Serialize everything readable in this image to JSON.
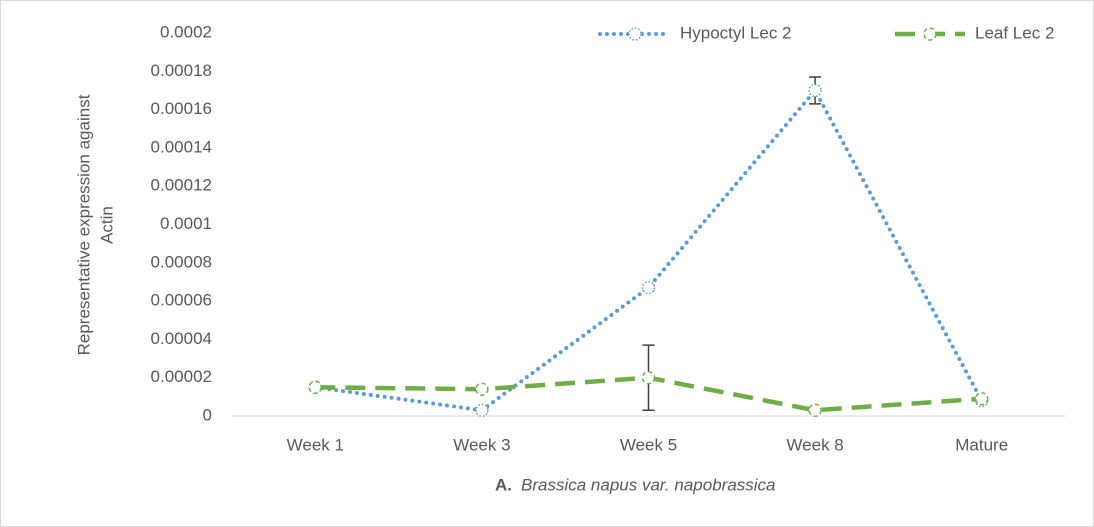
{
  "chart_data": {
    "type": "line",
    "categories": [
      "Week 1",
      "Week 3",
      "Week 5",
      "Week 8",
      "Mature"
    ],
    "series": [
      {
        "name": "Hypoctyl Lec 2",
        "color": "#5b9bd5",
        "dash": "dotted",
        "values": [
          1.5e-05,
          3e-06,
          6.7e-05,
          0.00017,
          8e-06
        ],
        "errors": [
          1e-06,
          1e-06,
          1.5e-06,
          7e-06,
          1e-06
        ]
      },
      {
        "name": "Leaf Lec 2",
        "color": "#70ad47",
        "dash": "dashed",
        "values": [
          1.5e-05,
          1.4e-05,
          2e-05,
          3e-06,
          9e-06
        ],
        "errors": [
          1e-06,
          1e-06,
          1.7e-05,
          1e-06,
          1e-06
        ]
      }
    ],
    "ylim": [
      0,
      0.0002
    ],
    "yticks": [
      0,
      2e-05,
      4e-05,
      6e-05,
      8e-05,
      0.0001,
      0.00012,
      0.00014,
      0.00016,
      0.00018,
      0.0002
    ],
    "ylabel": [
      "Representative expression against",
      "Actin"
    ],
    "xlabel": {
      "prefix": "A.",
      "text": "Brassica napus var. napobrassica"
    },
    "legend": "top-right",
    "grid": false
  }
}
